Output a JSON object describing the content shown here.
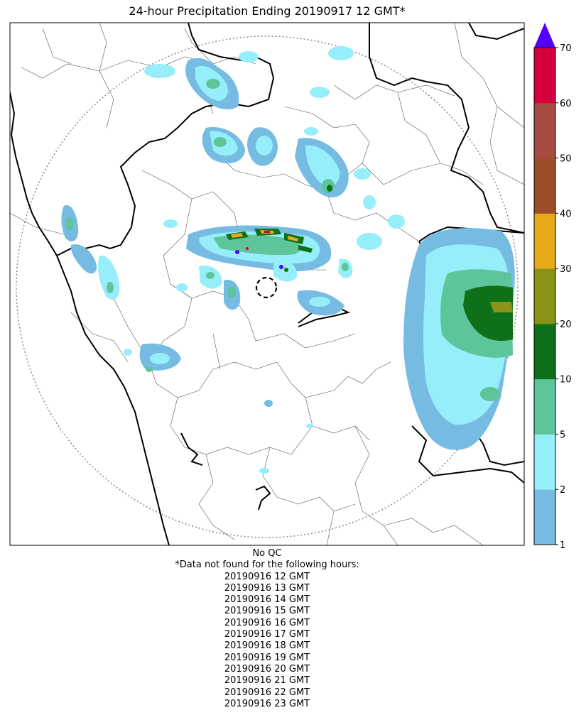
{
  "title": "24-hour Precipitation Ending 20190917 12 GMT*",
  "qc_note": "No QC",
  "missing_header": "*Data not found for the following hours:",
  "missing_hours": [
    "20190916 12 GMT",
    "20190916 13 GMT",
    "20190916 14 GMT",
    "20190916 15 GMT",
    "20190916 16 GMT",
    "20190916 17 GMT",
    "20190916 18 GMT",
    "20190916 19 GMT",
    "20190916 20 GMT",
    "20190916 21 GMT",
    "20190916 22 GMT",
    "20190916 23 GMT"
  ],
  "colorbar": {
    "ticks": [
      "1",
      "2",
      "5",
      "10",
      "20",
      "30",
      "40",
      "50",
      "60",
      "70"
    ],
    "bins": [
      {
        "from": "1",
        "to": "2",
        "color": "#76bce2"
      },
      {
        "from": "2",
        "to": "5",
        "color": "#96eefa"
      },
      {
        "from": "5",
        "to": "10",
        "color": "#5ec49a"
      },
      {
        "from": "10",
        "to": "20",
        "color": "#0e7018"
      },
      {
        "from": "20",
        "to": "30",
        "color": "#8a9318"
      },
      {
        "from": "30",
        "to": "40",
        "color": "#e6a91a"
      },
      {
        "from": "40",
        "to": "50",
        "color": "#9c4e28"
      },
      {
        "from": "50",
        "to": "60",
        "color": "#a84a44"
      },
      {
        "from": "60",
        "to": "70",
        "color": "#d4003e"
      }
    ],
    "overflow_color": "#5500ff"
  }
}
